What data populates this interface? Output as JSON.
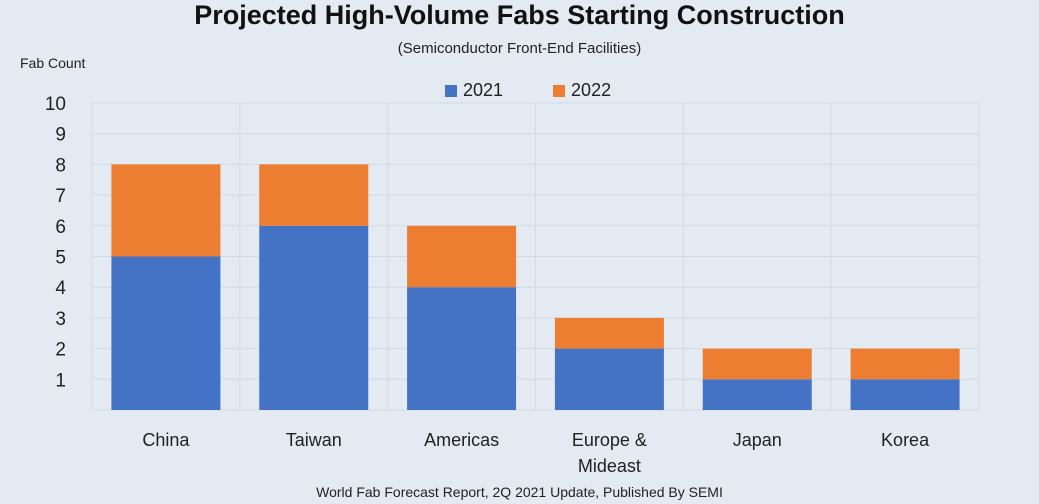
{
  "chart_data": {
    "type": "bar",
    "stacked": true,
    "title": "Projected High-Volume Fabs Starting Construction",
    "subtitle": "(Semiconductor Front-End Facilities)",
    "xlabel": "",
    "ylabel": "Fab Count",
    "ylim": [
      0,
      10
    ],
    "yticks": [
      1,
      2,
      3,
      4,
      5,
      6,
      7,
      8,
      9,
      10
    ],
    "categories": [
      [
        "China"
      ],
      [
        "Taiwan"
      ],
      [
        "Americas"
      ],
      [
        "Europe &",
        "Mideast"
      ],
      [
        "Japan"
      ],
      [
        "Korea"
      ]
    ],
    "series": [
      {
        "name": "2021",
        "color": "#4472c4",
        "values": [
          5,
          6,
          4,
          2,
          1,
          1
        ]
      },
      {
        "name": "2022",
        "color": "#ed7d31",
        "values": [
          3,
          2,
          2,
          1,
          1,
          1
        ]
      }
    ],
    "grid": true,
    "legend_position": "top-center",
    "source": "World Fab Forecast Report, 2Q 2021 Update, Published By SEMI"
  }
}
